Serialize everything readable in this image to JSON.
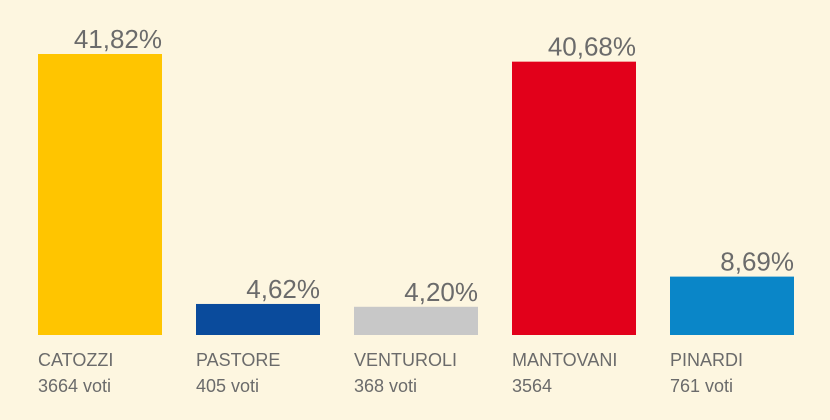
{
  "chart_data": {
    "type": "bar",
    "title": "",
    "xlabel": "",
    "ylabel": "",
    "ylim": [
      0,
      41.82
    ],
    "grid": false,
    "categories": [
      "CATOZZI",
      "PASTORE",
      "VENTUROLI",
      "MANTOVANI",
      "PINARDI"
    ],
    "values": [
      41.82,
      4.62,
      4.2,
      40.68,
      8.69
    ],
    "value_labels": [
      "41,82%",
      "4,62%",
      "4,20%",
      "40,68%",
      "8,69%"
    ],
    "votes": [
      "3664 voti",
      "405 voti",
      "368 voti",
      "3564",
      "761 voti"
    ],
    "colors": [
      "#ffc500",
      "#0a4b9c",
      "#c8c8c8",
      "#e2001a",
      "#0a86c8"
    ]
  }
}
